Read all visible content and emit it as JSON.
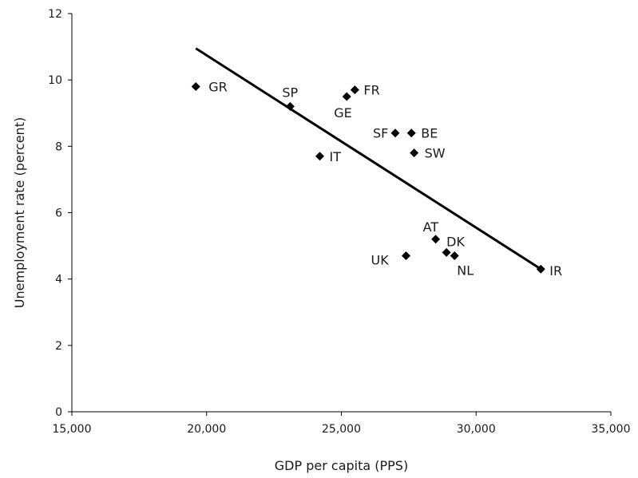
{
  "chart_data": {
    "type": "scatter",
    "title": "",
    "xlabel": "GDP per capita (PPS)",
    "ylabel": "Unemployment rate (percent)",
    "xlim": [
      15000,
      35000
    ],
    "ylim": [
      0,
      12
    ],
    "xticks": [
      15000,
      20000,
      25000,
      30000,
      35000
    ],
    "xtick_labels": [
      "15,000",
      "20,000",
      "25,000",
      "30,000",
      "35,000"
    ],
    "yticks": [
      0,
      2,
      4,
      6,
      8,
      10,
      12
    ],
    "ytick_labels": [
      "0",
      "2",
      "4",
      "6",
      "8",
      "10",
      "12"
    ],
    "grid": false,
    "legend": "none",
    "marker": "diamond",
    "marker_color": "#000000",
    "points": [
      {
        "label": "GR",
        "x": 19600,
        "y": 9.8
      },
      {
        "label": "SP",
        "x": 23100,
        "y": 9.2
      },
      {
        "label": "GE",
        "x": 25200,
        "y": 9.5
      },
      {
        "label": "FR",
        "x": 25500,
        "y": 9.7
      },
      {
        "label": "SF",
        "x": 27000,
        "y": 8.4
      },
      {
        "label": "BE",
        "x": 27600,
        "y": 8.4
      },
      {
        "label": "SW",
        "x": 27700,
        "y": 7.8
      },
      {
        "label": "IT",
        "x": 24200,
        "y": 7.7
      },
      {
        "label": "AT",
        "x": 28500,
        "y": 5.2
      },
      {
        "label": "DK",
        "x": 28900,
        "y": 4.8
      },
      {
        "label": "NL",
        "x": 29200,
        "y": 4.7
      },
      {
        "label": "UK",
        "x": 27400,
        "y": 4.7
      },
      {
        "label": "IR",
        "x": 32400,
        "y": 4.3
      }
    ],
    "trendline": {
      "x": [
        19600,
        32500
      ],
      "y": [
        10.95,
        4.25
      ]
    }
  }
}
